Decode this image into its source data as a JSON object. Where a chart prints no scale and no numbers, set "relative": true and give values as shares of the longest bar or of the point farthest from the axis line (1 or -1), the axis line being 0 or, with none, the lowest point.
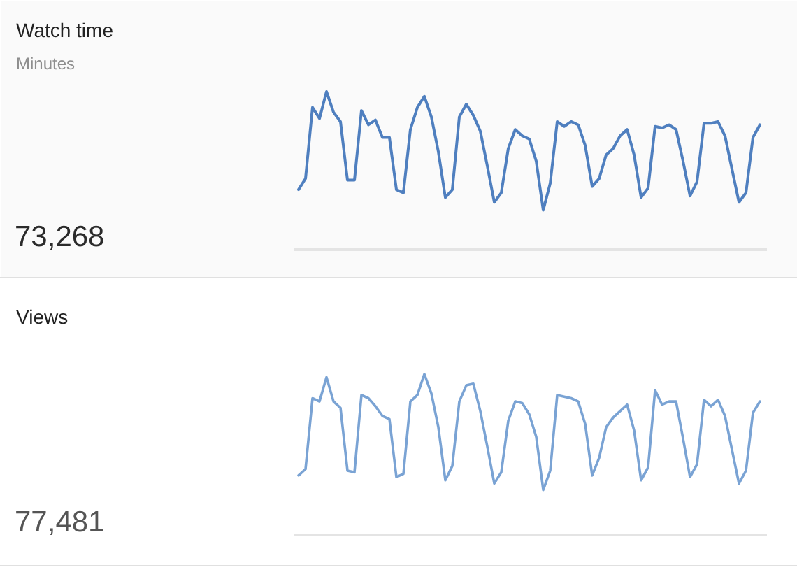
{
  "chart_data": [
    {
      "type": "other",
      "title": "Watch time",
      "subtitle": "Minutes",
      "annotations": [
        "73,268"
      ]
    },
    {
      "type": "line",
      "relative": true,
      "line_style": "solid",
      "categories": [
        null,
        null,
        null,
        null,
        null,
        null,
        null,
        null,
        null,
        null,
        null,
        null,
        null,
        null,
        null,
        null,
        null,
        null,
        null,
        null,
        null,
        null,
        null,
        null,
        null,
        null,
        null,
        null,
        null,
        null,
        null,
        null,
        null,
        null,
        null,
        null,
        null,
        null,
        null,
        null,
        null,
        null,
        null,
        null,
        null,
        null,
        null,
        null,
        null,
        null,
        null,
        null,
        null,
        null,
        null,
        null,
        null,
        null,
        null,
        null,
        null,
        null,
        null,
        null,
        null,
        null,
        null
      ],
      "series": [
        {
          "color": "#4f7fbf",
          "values": [
            0.38,
            0.45,
            0.9,
            0.83,
            1.0,
            0.87,
            0.81,
            0.44,
            0.44,
            0.88,
            0.79,
            0.82,
            0.71,
            0.71,
            0.38,
            0.36,
            0.76,
            0.9,
            0.97,
            0.84,
            0.62,
            0.33,
            0.38,
            0.84,
            0.92,
            0.85,
            0.75,
            0.53,
            0.3,
            0.36,
            0.64,
            0.76,
            0.72,
            0.7,
            0.56,
            0.25,
            0.42,
            0.81,
            0.78,
            0.81,
            0.79,
            0.66,
            0.4,
            0.45,
            0.6,
            0.64,
            0.72,
            0.76,
            0.6,
            0.33,
            0.39,
            0.78,
            0.77,
            0.79,
            0.76,
            0.56,
            0.34,
            0.43,
            0.8,
            0.8,
            0.81,
            0.72,
            0.51,
            0.3,
            0.36,
            0.71,
            0.79
          ]
        }
      ]
    },
    {
      "type": "other",
      "title": "Views",
      "annotations": [
        "77,481"
      ]
    },
    {
      "type": "line",
      "relative": true,
      "line_style": "solid",
      "categories": [
        null,
        null,
        null,
        null,
        null,
        null,
        null,
        null,
        null,
        null,
        null,
        null,
        null,
        null,
        null,
        null,
        null,
        null,
        null,
        null,
        null,
        null,
        null,
        null,
        null,
        null,
        null,
        null,
        null,
        null,
        null,
        null,
        null,
        null,
        null,
        null,
        null,
        null,
        null,
        null,
        null,
        null,
        null,
        null,
        null,
        null,
        null,
        null,
        null,
        null,
        null,
        null,
        null,
        null,
        null,
        null,
        null,
        null,
        null,
        null,
        null,
        null,
        null,
        null,
        null,
        null,
        null
      ],
      "series": [
        {
          "color": "#7aa3d4",
          "values": [
            0.37,
            0.41,
            0.85,
            0.83,
            0.98,
            0.83,
            0.79,
            0.4,
            0.39,
            0.87,
            0.85,
            0.8,
            0.74,
            0.72,
            0.36,
            0.38,
            0.83,
            0.87,
            1.0,
            0.88,
            0.67,
            0.34,
            0.43,
            0.83,
            0.93,
            0.94,
            0.77,
            0.55,
            0.32,
            0.39,
            0.71,
            0.83,
            0.82,
            0.75,
            0.61,
            0.28,
            0.4,
            0.87,
            0.86,
            0.85,
            0.83,
            0.69,
            0.37,
            0.48,
            0.67,
            0.73,
            0.77,
            0.81,
            0.65,
            0.34,
            0.42,
            0.9,
            0.81,
            0.83,
            0.83,
            0.6,
            0.36,
            0.44,
            0.84,
            0.8,
            0.84,
            0.74,
            0.53,
            0.32,
            0.4,
            0.76,
            0.83
          ]
        }
      ]
    }
  ]
}
